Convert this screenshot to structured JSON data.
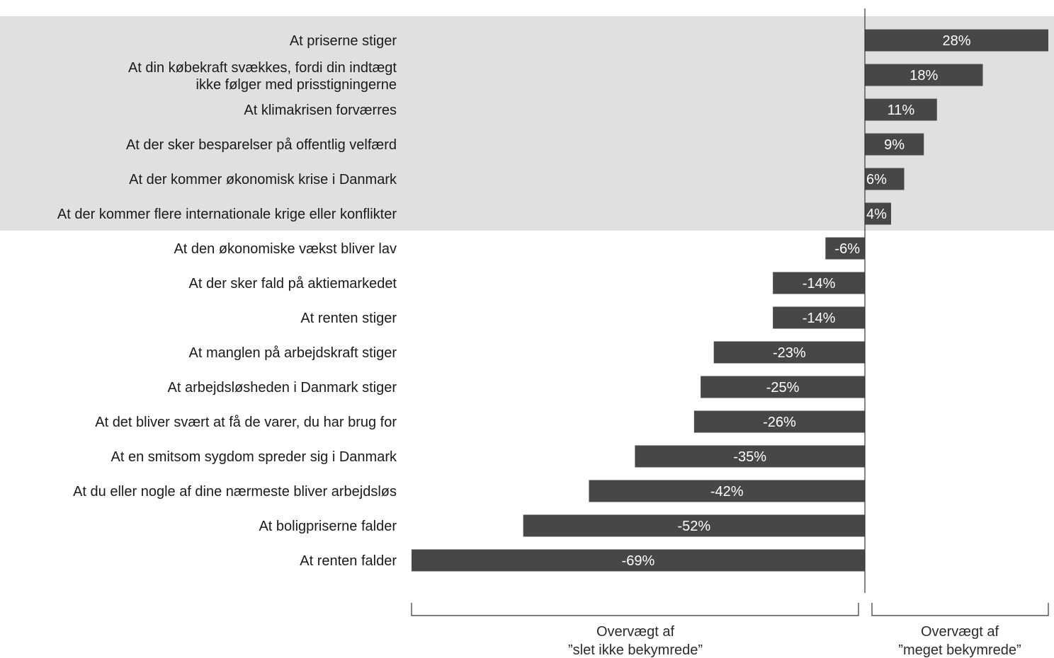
{
  "chart_data": {
    "type": "bar",
    "orientation": "horizontal",
    "categories": [
      "At priserne stiger",
      "At din købekraft svækkes, fordi din indtægt\nikke følger med prisstigningerne",
      "At klimakrisen forværres",
      "At der sker besparelser på offentlig velfærd",
      "At der kommer økonomisk krise i Danmark",
      "At der kommer flere internationale krige eller konflikter",
      "At den økonomiske vækst bliver lav",
      "At der sker fald på aktiemarkedet",
      "At renten stiger",
      "At manglen på arbejdskraft stiger",
      "At arbejdsløsheden i Danmark stiger",
      "At det bliver svært at få de varer, du har brug for",
      "At en smitsom sygdom spreder sig i Danmark",
      "At du eller nogle af dine nærmeste bliver arbejdsløs",
      "At boligpriserne falder",
      "At renten falder"
    ],
    "values": [
      28,
      18,
      11,
      9,
      6,
      4,
      -6,
      -14,
      -14,
      -23,
      -25,
      -26,
      -35,
      -42,
      -52,
      -69
    ],
    "value_labels": [
      "28%",
      "18%",
      "11%",
      "9%",
      "6%",
      "4%",
      "-6%",
      "-14%",
      "-14%",
      "-23%",
      "-25%",
      "-26%",
      "-35%",
      "-42%",
      "-52%",
      "-69%"
    ],
    "xlim": [
      -69,
      28
    ],
    "highlighted_rows": [
      0,
      1,
      2,
      3,
      4,
      5
    ],
    "grid": false,
    "brackets": [
      {
        "side": "negative",
        "label_line1": "Overvægt af",
        "label_line2": "”slet ikke bekymrede”"
      },
      {
        "side": "positive",
        "label_line1": "Overvægt af",
        "label_line2": "”meget bekymrede”"
      }
    ],
    "colors": {
      "bar": "#474747",
      "highlight_band": "#e0e0e0",
      "axis": "#333333",
      "label": "#1a1a1a",
      "value_label": "#ffffff"
    }
  }
}
